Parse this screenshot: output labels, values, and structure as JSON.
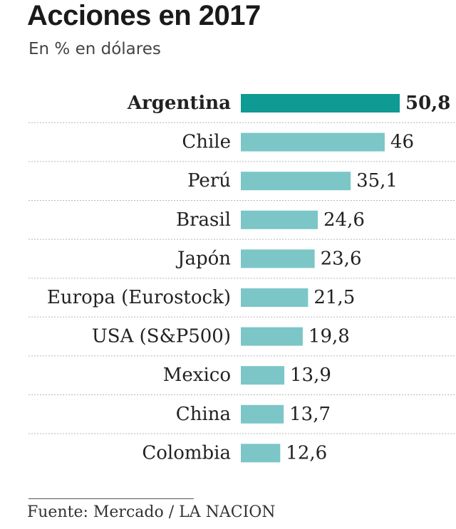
{
  "chart_data": {
    "type": "bar",
    "orientation": "horizontal",
    "title": "Acciones en 2017",
    "subtitle": "En % en dólares",
    "categories": [
      "Argentina",
      "Chile",
      "Perú",
      "Brasil",
      "Japón",
      "Europa (Eurostock)",
      "USA (S&P500)",
      "Mexico",
      "China",
      "Colombia"
    ],
    "values": [
      50.8,
      46,
      35.1,
      24.6,
      23.6,
      21.5,
      19.8,
      13.9,
      13.7,
      12.6
    ],
    "value_labels": [
      "50,8",
      "46",
      "35,1",
      "24,6",
      "23,6",
      "21,5",
      "19,8",
      "13,9",
      "13,7",
      "12,6"
    ],
    "highlight_category": "Argentina",
    "colors": {
      "highlight": "#0f9a93",
      "bar": "#7cc6c7",
      "separator": "#b5b5b5",
      "text": "#222222"
    },
    "grid": false,
    "legend": "none"
  },
  "source": "Fuente: Mercado / LA NACION"
}
